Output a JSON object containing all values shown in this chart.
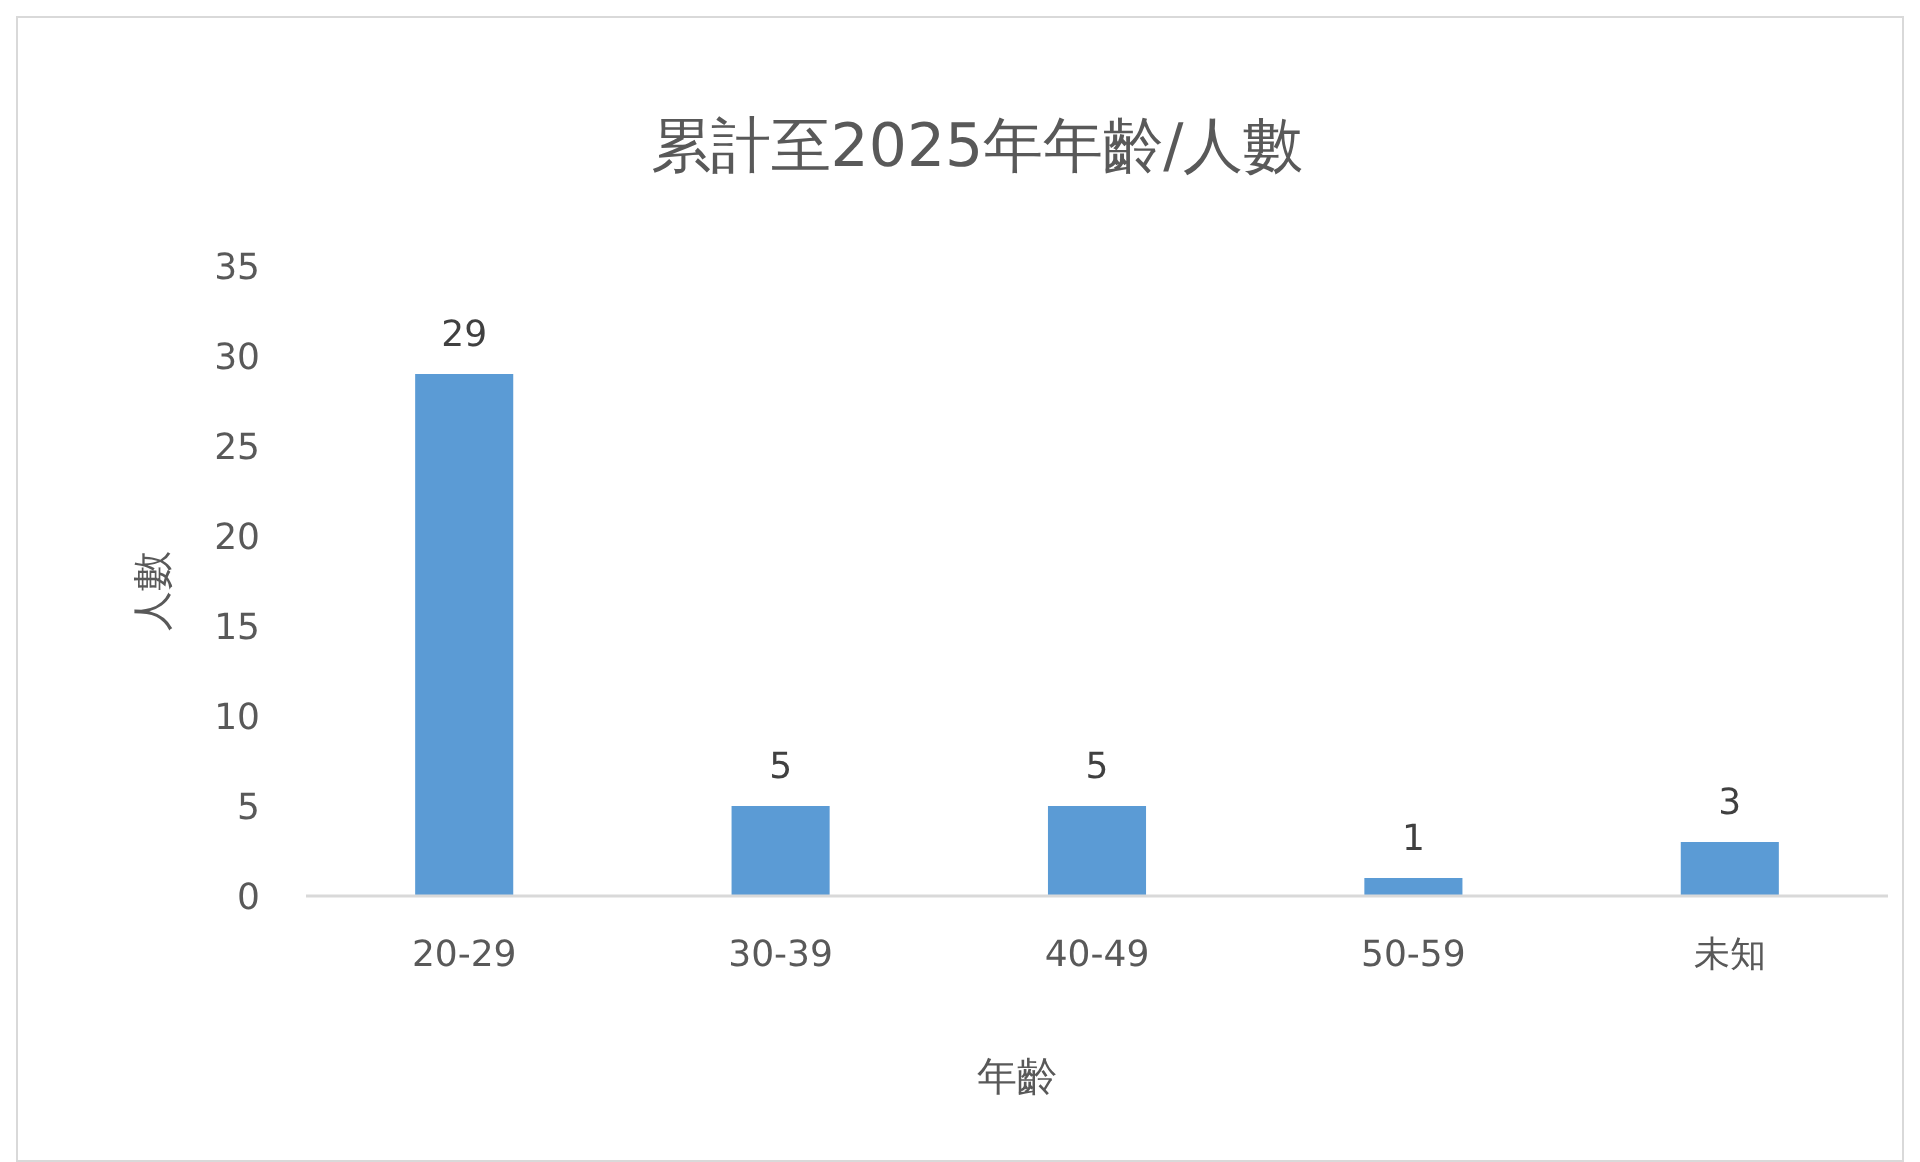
{
  "chart_data": {
    "type": "bar",
    "title": "累計至2025年年齡/人數",
    "xlabel": "年齡",
    "ylabel": "人數",
    "categories": [
      "20-29",
      "30-39",
      "40-49",
      "50-59",
      "未知"
    ],
    "values": [
      29,
      5,
      5,
      1,
      3
    ],
    "color": "#5b9bd5",
    "ylim": [
      0,
      35
    ],
    "yticks": [
      0,
      5,
      10,
      15,
      20,
      25,
      30,
      35
    ],
    "grid": false,
    "data_labels": true
  }
}
